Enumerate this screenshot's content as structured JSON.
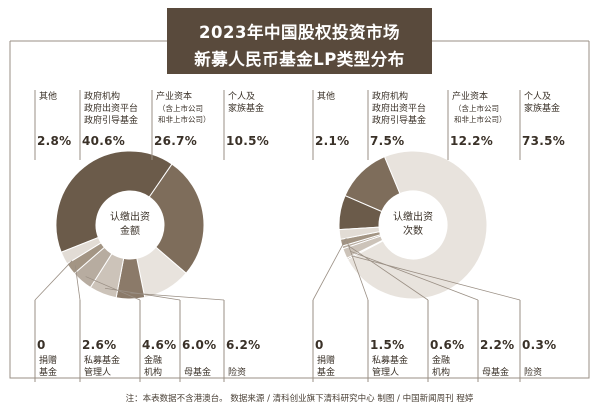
{
  "title": [
    "2023年中国股权投资市场",
    "新募人民币基金LP类型分布"
  ],
  "footnote": "注：本表数据不含港澳台。    数据来源 / 清科创业旗下清科研究中心    制图 / 中国新闻周刊  程婷",
  "colors": {
    "title_bg": "#594a3c",
    "frame_line": "#9a8f84",
    "slices": [
      "#e2dcd5",
      "#6b5b4a",
      "#7e6d5b",
      "#e8e3dd",
      "#8b7a69",
      "#ccc3b9",
      "#b7aca0",
      "#a39584",
      "#5c4b3a"
    ]
  },
  "chart_data": [
    {
      "type": "pie",
      "center_label": [
        "认缴出资",
        "金额"
      ],
      "slices": [
        {
          "label": "其他",
          "value": 2.8
        },
        {
          "label": "政府机构\n政府出资平台\n政府引导基金",
          "value": 40.6
        },
        {
          "label": "产业资本",
          "sublabel": "（含上市公司\n和非上市公司）",
          "value": 26.7
        },
        {
          "label": "个人及\n家族基金",
          "value": 10.5
        },
        {
          "label": "险资",
          "value": 6.2
        },
        {
          "label": "母基金",
          "value": 6.0
        },
        {
          "label": "金融\n机构",
          "value": 4.6
        },
        {
          "label": "私募基金\n管理人",
          "value": 2.6
        },
        {
          "label": "捐赠\n基金",
          "value": 0
        }
      ],
      "display_values": [
        "2.8%",
        "40.6%",
        "26.7%",
        "10.5%",
        "6.2%",
        "6.0%",
        "4.6%",
        "2.6%",
        "0"
      ]
    },
    {
      "type": "pie",
      "center_label": [
        "认缴出资",
        "次数"
      ],
      "slices": [
        {
          "label": "其他",
          "value": 2.1
        },
        {
          "label": "政府机构\n政府出资平台\n政府引导基金",
          "value": 7.5
        },
        {
          "label": "产业资本",
          "sublabel": "（含上市公司\n和非上市公司）",
          "value": 12.2
        },
        {
          "label": "个人及\n家族基金",
          "value": 73.5
        },
        {
          "label": "险资",
          "value": 0.3
        },
        {
          "label": "母基金",
          "value": 2.2
        },
        {
          "label": "金融\n机构",
          "value": 0.6
        },
        {
          "label": "私募基金\n管理人",
          "value": 1.5
        },
        {
          "label": "捐赠\n基金",
          "value": 0
        }
      ],
      "display_values": [
        "2.1%",
        "7.5%",
        "12.2%",
        "73.5%",
        "0.3%",
        "2.2%",
        "0.6%",
        "1.5%",
        "0"
      ]
    }
  ]
}
